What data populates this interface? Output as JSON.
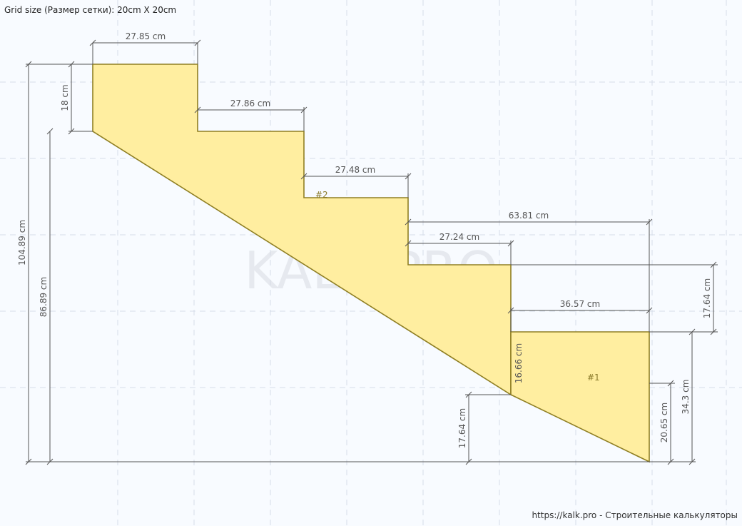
{
  "header": {
    "grid_size": "Grid size (Размер сетки): 20cm X 20cm"
  },
  "footer": {
    "site": "https://kalk.pro - Строительные калькуляторы"
  },
  "watermark": "KALK.PRO",
  "colors": {
    "fill": "#ffeea0",
    "outline": "#8f7f23",
    "dimension": "#555555",
    "grid": "#d6dde8",
    "background": "#f8fbff"
  },
  "parts": {
    "p1": "#1",
    "p2": "#2"
  },
  "dimensions": {
    "tread1": "27.85 cm",
    "tread2": "27.86 cm",
    "tread3": "27.48 cm",
    "tread4": "27.24 cm",
    "tread5": "36.57 cm",
    "run_lower": "63.81 cm",
    "rise_first": "18 cm",
    "total_height": "104.89 cm",
    "height_under": "86.89 cm",
    "rise_step": "17.64 cm",
    "rise_landing_side": "16.66 cm",
    "landing_height": "34.3 cm",
    "landing_end": "20.65 cm",
    "rise_bottom": "17.64 cm"
  }
}
